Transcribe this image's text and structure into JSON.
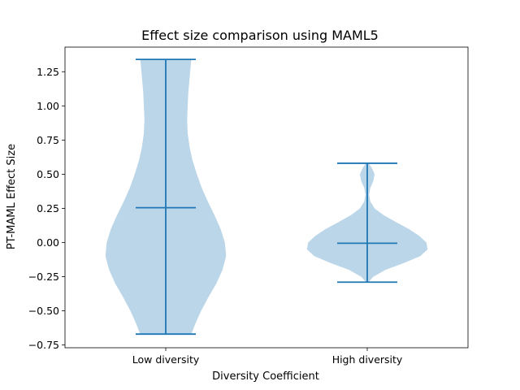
{
  "chart_data": {
    "type": "violin",
    "title": "Effect size comparison using MAML5",
    "xlabel": "Diversity Coefficient",
    "ylabel": "PT-MAML Effect Size",
    "ylim": [
      -0.77,
      1.43
    ],
    "yticks": [
      -0.75,
      -0.5,
      -0.25,
      0.0,
      0.25,
      0.5,
      0.75,
      1.0,
      1.25
    ],
    "ytick_labels": [
      "−0.75",
      "−0.50",
      "−0.25",
      "0.00",
      "0.25",
      "0.50",
      "0.75",
      "1.00",
      "1.25"
    ],
    "categories": [
      "Low diversity",
      "High diversity"
    ],
    "series": [
      {
        "name": "Low diversity",
        "min": -0.67,
        "max": 1.34,
        "mean": 0.255,
        "density_y": [
          -0.67,
          -0.6,
          -0.5,
          -0.4,
          -0.3,
          -0.2,
          -0.1,
          0.0,
          0.1,
          0.2,
          0.3,
          0.4,
          0.5,
          0.6,
          0.7,
          0.8,
          0.9,
          1.0,
          1.1,
          1.2,
          1.3,
          1.34
        ],
        "density_w": [
          0.42,
          0.48,
          0.58,
          0.7,
          0.83,
          0.93,
          0.99,
          0.97,
          0.9,
          0.8,
          0.69,
          0.59,
          0.51,
          0.44,
          0.39,
          0.36,
          0.35,
          0.36,
          0.37,
          0.39,
          0.41,
          0.42
        ]
      },
      {
        "name": "High diversity",
        "min": -0.29,
        "max": 0.58,
        "mean": -0.005,
        "density_y": [
          -0.29,
          -0.25,
          -0.2,
          -0.15,
          -0.1,
          -0.05,
          0.0,
          0.05,
          0.1,
          0.15,
          0.2,
          0.25,
          0.3,
          0.35,
          0.4,
          0.45,
          0.5,
          0.55,
          0.58
        ],
        "density_w": [
          0.02,
          0.1,
          0.3,
          0.6,
          0.87,
          0.99,
          0.97,
          0.85,
          0.68,
          0.47,
          0.27,
          0.12,
          0.05,
          0.03,
          0.05,
          0.1,
          0.12,
          0.07,
          0.02
        ]
      }
    ],
    "colors": {
      "fill": "#1f77b4",
      "fill_alpha": 0.3,
      "line": "#1f77b4"
    }
  }
}
